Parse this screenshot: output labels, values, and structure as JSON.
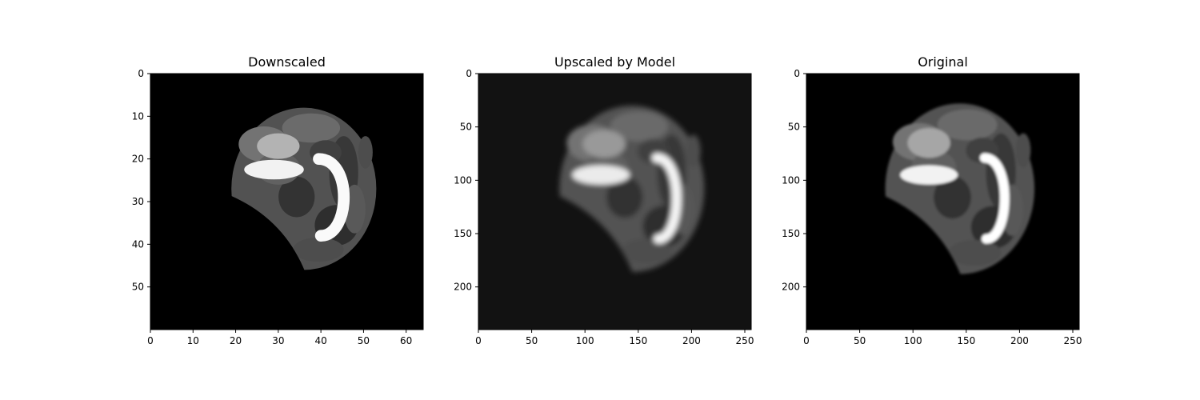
{
  "chart_data": [
    {
      "type": "heatmap",
      "title": "Downscaled",
      "xlabel": "",
      "ylabel": "",
      "colormap": "gray",
      "xlim": [
        0,
        64
      ],
      "ylim": [
        60,
        0
      ],
      "xticks": [
        0,
        10,
        20,
        30,
        40,
        50,
        60
      ],
      "yticks": [
        0,
        10,
        20,
        30,
        40,
        50
      ],
      "background": "#000000",
      "brain": {
        "center": [
          36,
          27
        ],
        "rx": 17,
        "ry": 19
      },
      "bright_structures": [
        {
          "kind": "ellipse",
          "center": [
            29,
            22.5
          ],
          "rx": 7,
          "ry": 2.3,
          "intensity": 0.95
        },
        {
          "kind": "ellipse",
          "center": [
            30,
            17
          ],
          "rx": 5,
          "ry": 3,
          "intensity": 0.7
        },
        {
          "kind": "arc",
          "center": [
            41,
            29
          ],
          "rx": 5,
          "ry": 9,
          "intensity": 0.98
        }
      ]
    },
    {
      "type": "heatmap",
      "title": "Upscaled by Model",
      "xlabel": "",
      "ylabel": "",
      "colormap": "gray",
      "xlim": [
        0,
        256
      ],
      "ylim": [
        240,
        0
      ],
      "xticks": [
        0,
        50,
        100,
        150,
        200,
        250
      ],
      "yticks": [
        0,
        50,
        100,
        150,
        200
      ],
      "background": "#121212",
      "brain": {
        "center": [
          144,
          108
        ],
        "rx": 68,
        "ry": 78
      },
      "bright_structures": [
        {
          "kind": "ellipse",
          "center": [
            115,
            95
          ],
          "rx": 27,
          "ry": 9,
          "intensity": 0.92
        },
        {
          "kind": "ellipse",
          "center": [
            118,
            66
          ],
          "rx": 20,
          "ry": 13,
          "intensity": 0.6
        },
        {
          "kind": "arc",
          "center": [
            172,
            117
          ],
          "rx": 16,
          "ry": 38,
          "intensity": 0.96
        }
      ]
    },
    {
      "type": "heatmap",
      "title": "Original",
      "xlabel": "",
      "ylabel": "",
      "colormap": "gray",
      "xlim": [
        0,
        256
      ],
      "ylim": [
        240,
        0
      ],
      "xticks": [
        0,
        50,
        100,
        150,
        200,
        250
      ],
      "yticks": [
        0,
        50,
        100,
        150,
        200
      ],
      "background": "#000000",
      "brain": {
        "center": [
          144,
          108
        ],
        "rx": 70,
        "ry": 80
      },
      "bright_structures": [
        {
          "kind": "ellipse",
          "center": [
            115,
            95
          ],
          "rx": 27,
          "ry": 9,
          "intensity": 0.95
        },
        {
          "kind": "ellipse",
          "center": [
            115,
            65
          ],
          "rx": 20,
          "ry": 14,
          "intensity": 0.65
        },
        {
          "kind": "arc",
          "center": [
            172,
            117
          ],
          "rx": 16,
          "ry": 38,
          "intensity": 1.0
        }
      ]
    }
  ]
}
